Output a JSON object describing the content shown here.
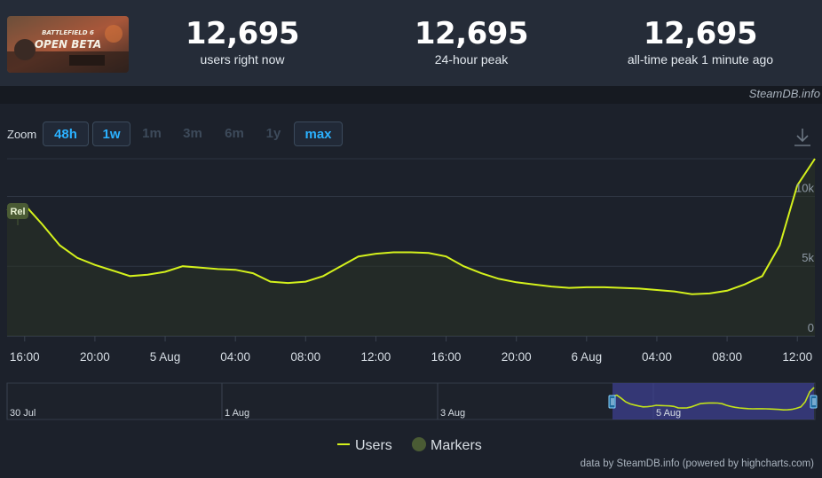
{
  "header": {
    "thumbnail_title": "BATTLEFIELD 6",
    "thumbnail_subtitle": "OPEN BETA",
    "stats": [
      {
        "value": "12,695",
        "label": "users right now"
      },
      {
        "value": "12,695",
        "label": "24-hour peak"
      },
      {
        "value": "12,695",
        "label": "all-time peak 1 minute ago"
      }
    ],
    "brand": "SteamDB.info"
  },
  "zoom": {
    "label": "Zoom",
    "buttons": [
      {
        "label": "48h",
        "active": true
      },
      {
        "label": "1w",
        "active": true
      },
      {
        "label": "1m",
        "active": false
      },
      {
        "label": "3m",
        "active": false
      },
      {
        "label": "6m",
        "active": false
      },
      {
        "label": "1y",
        "active": false
      },
      {
        "label": "max",
        "active": true
      }
    ]
  },
  "chart_data": {
    "type": "line",
    "series": [
      {
        "name": "Users",
        "color": "#d4f11c",
        "x": [
          "15:00",
          "16:00",
          "17:00",
          "18:00",
          "19:00",
          "20:00",
          "21:00",
          "22:00",
          "23:00",
          "00:00",
          "01:00",
          "02:00",
          "03:00",
          "04:00",
          "05:00",
          "06:00",
          "07:00",
          "08:00",
          "09:00",
          "10:00",
          "11:00",
          "12:00",
          "13:00",
          "14:00",
          "15:00",
          "16:00",
          "17:00",
          "18:00",
          "19:00",
          "20:00",
          "21:00",
          "22:00",
          "23:00",
          "00:00",
          "01:00",
          "02:00",
          "03:00",
          "04:00",
          "05:00",
          "06:00",
          "07:00",
          "08:00",
          "09:00",
          "10:00",
          "11:00",
          "12:00",
          "12:30"
        ],
        "values": [
          9000,
          9400,
          8000,
          6500,
          5600,
          5100,
          4700,
          4300,
          4400,
          4600,
          5000,
          4900,
          4800,
          4750,
          4500,
          3900,
          3800,
          3900,
          4300,
          5000,
          5700,
          5900,
          6000,
          6000,
          5950,
          5700,
          5000,
          4500,
          4100,
          3850,
          3700,
          3550,
          3450,
          3500,
          3500,
          3450,
          3400,
          3300,
          3200,
          3000,
          3050,
          3250,
          3700,
          4300,
          6500,
          10800,
          12695
        ]
      }
    ],
    "markers": [
      {
        "label": "Rel",
        "x": "15:00"
      }
    ],
    "x_tick_labels": [
      "16:00",
      "20:00",
      "5 Aug",
      "04:00",
      "08:00",
      "12:00",
      "16:00",
      "20:00",
      "6 Aug",
      "04:00",
      "08:00",
      "12:00"
    ],
    "y_tick_labels": [
      "0",
      "5k",
      "10k"
    ],
    "ylim": [
      0,
      12695
    ],
    "navigator_labels": [
      "30 Jul",
      "1 Aug",
      "3 Aug",
      "5 Aug"
    ],
    "legend": [
      {
        "label": "Users",
        "color": "#d4f11c"
      },
      {
        "label": "Markers",
        "color": "#4a5b34"
      }
    ],
    "legend_position": "bottom-center",
    "grid": true
  },
  "footer": {
    "credit": "data by SteamDB.info (powered by highcharts.com)"
  }
}
